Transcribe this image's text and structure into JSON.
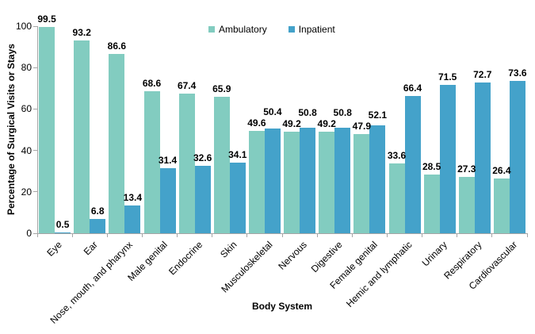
{
  "chart_data": {
    "type": "bar",
    "title": "",
    "xlabel": "Body System",
    "ylabel": "Percentage of Surgical Visits or Stays",
    "categories": [
      "Eye",
      "Ear",
      "Nose, mouth, and pharynx",
      "Male genital",
      "Endocrine",
      "Skin",
      "Musculoskeletal",
      "Nervous",
      "Digestive",
      "Female genital",
      "Hemic and lymphatic",
      "Urinary",
      "Respiratory",
      "Cardiovascular"
    ],
    "series": [
      {
        "name": "Ambulatory",
        "color": "#82CCC0",
        "values": [
          99.5,
          93.2,
          86.6,
          68.6,
          67.4,
          65.9,
          49.6,
          49.2,
          49.2,
          47.9,
          33.6,
          28.5,
          27.3,
          26.4
        ]
      },
      {
        "name": "Inpatient",
        "color": "#44A2CA",
        "values": [
          0.5,
          6.8,
          13.4,
          31.4,
          32.6,
          34.1,
          50.4,
          50.8,
          50.8,
          52.1,
          66.4,
          71.5,
          72.7,
          73.6
        ]
      }
    ],
    "ylim": [
      0,
      100
    ],
    "yticks": [
      0,
      20,
      40,
      60,
      80,
      100
    ],
    "grid": false,
    "legend_position": "top-center",
    "value_labels": true,
    "axis_color": "#A6A6A6",
    "text_color": "#000000",
    "background_color": "#FFFFFF"
  }
}
